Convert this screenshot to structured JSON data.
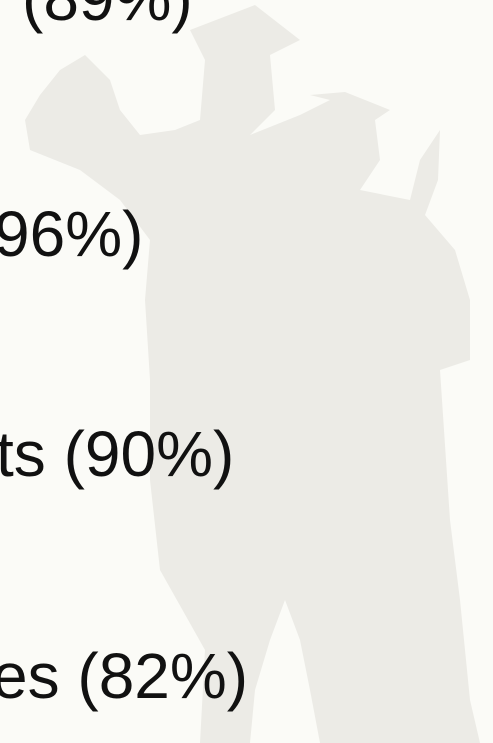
{
  "lines": [
    "(89%)",
    "96%)",
    "ts (90%)",
    "es (82%)"
  ]
}
